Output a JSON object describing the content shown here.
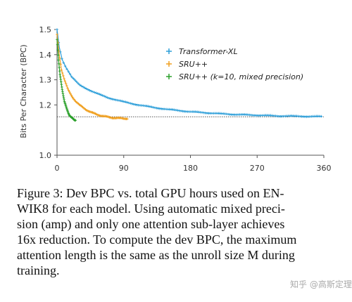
{
  "chart_data": {
    "type": "line",
    "title": "",
    "xlabel": "",
    "ylabel": "Bits Per Character (BPC)",
    "xlim": [
      0,
      360
    ],
    "ylim": [
      1.0,
      1.5
    ],
    "xticks": [
      0,
      90,
      180,
      270,
      360
    ],
    "yticks": [
      1.0,
      1.2,
      1.3,
      1.4,
      1.5
    ],
    "xtick_labels": [
      "0",
      "90",
      "180",
      "270",
      "360"
    ],
    "ytick_labels": [
      "1.0",
      "1.2",
      "1.3",
      "1.4",
      "1.5"
    ],
    "reference_line": {
      "y": 1.153,
      "style": "dotted"
    },
    "legend_position": "top-right",
    "grid": false,
    "series": [
      {
        "name": "Transformer-XL",
        "color": "#2e9fd9",
        "marker": "+",
        "x": [
          0,
          3,
          7,
          12,
          20,
          30,
          40,
          50,
          60,
          70,
          80,
          90,
          100,
          110,
          120,
          130,
          140,
          150,
          160,
          170,
          180,
          190,
          200,
          210,
          220,
          230,
          240,
          250,
          260,
          270,
          280,
          290,
          300,
          310,
          320,
          330,
          340,
          350,
          358
        ],
        "y": [
          1.5,
          1.43,
          1.38,
          1.35,
          1.31,
          1.28,
          1.265,
          1.25,
          1.238,
          1.228,
          1.22,
          1.212,
          1.206,
          1.2,
          1.195,
          1.19,
          1.186,
          1.182,
          1.179,
          1.176,
          1.173,
          1.171,
          1.169,
          1.167,
          1.165,
          1.164,
          1.162,
          1.161,
          1.16,
          1.159,
          1.158,
          1.157,
          1.156,
          1.156,
          1.155,
          1.155,
          1.154,
          1.154,
          1.154
        ]
      },
      {
        "name": "SRU++",
        "color": "#f0a020",
        "marker": "+",
        "x": [
          0,
          3,
          6,
          10,
          15,
          20,
          25,
          30,
          35,
          40,
          45,
          50,
          55,
          60,
          65,
          70,
          75,
          80,
          85,
          90,
          95
        ],
        "y": [
          1.48,
          1.4,
          1.34,
          1.3,
          1.26,
          1.235,
          1.215,
          1.2,
          1.19,
          1.18,
          1.172,
          1.166,
          1.161,
          1.157,
          1.154,
          1.151,
          1.149,
          1.148,
          1.147,
          1.146,
          1.146
        ]
      },
      {
        "name": "SRU++ (k=10, mixed precision)",
        "color": "#2ca02c",
        "marker": "+",
        "x": [
          0,
          1,
          2,
          3,
          4,
          5,
          6,
          7,
          8,
          9,
          10,
          11,
          12,
          13,
          14,
          15,
          16,
          17,
          18,
          19,
          20,
          21,
          22,
          23,
          24,
          25
        ],
        "y": [
          1.46,
          1.42,
          1.38,
          1.35,
          1.32,
          1.3,
          1.28,
          1.26,
          1.245,
          1.23,
          1.215,
          1.205,
          1.195,
          1.185,
          1.177,
          1.17,
          1.164,
          1.159,
          1.155,
          1.151,
          1.148,
          1.146,
          1.144,
          1.142,
          1.141,
          1.14
        ]
      }
    ]
  },
  "caption": {
    "line1": "Figure 3: Dev BPC vs.  total GPU hours used on EN-",
    "line2": "WIK8 for each model.  Using automatic mixed preci-",
    "line3": "sion (amp) and only one attention sub-layer achieves",
    "line4": "16x reduction. To compute the dev BPC, the maximum",
    "line5": "attention length is the same as the unroll size M during",
    "line6": "training."
  },
  "watermark": "知乎 @高斯定理"
}
